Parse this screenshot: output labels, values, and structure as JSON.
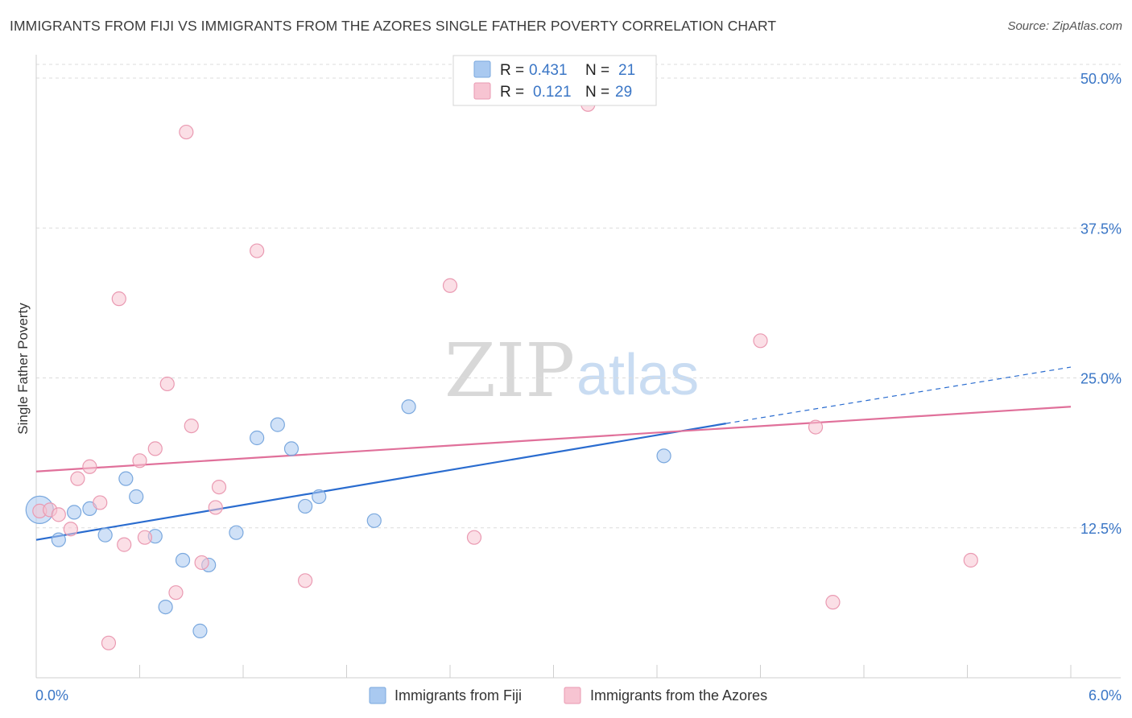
{
  "title": "IMMIGRANTS FROM FIJI VS IMMIGRANTS FROM THE AZORES SINGLE FATHER POVERTY CORRELATION CHART",
  "source": "Source: ZipAtlas.com",
  "watermark": {
    "zip": "ZIP",
    "atlas": "atlas"
  },
  "legend": {
    "r_label": "R =",
    "n_label": "N =",
    "rows": [
      {
        "r": "0.431",
        "n": "21"
      },
      {
        "r": "0.121",
        "n": "29"
      }
    ]
  },
  "chart_data": {
    "type": "scatter",
    "title": "IMMIGRANTS FROM FIJI VS IMMIGRANTS FROM THE AZORES SINGLE FATHER POVERTY CORRELATION CHART",
    "xlabel": "",
    "ylabel": "Single Father Poverty",
    "xlim": [
      0.0,
      6.0
    ],
    "ylim": [
      0.0,
      50.0
    ],
    "x_tick_labels": [
      "0.0%",
      "6.0%"
    ],
    "y_ticks": [
      12.5,
      25.0,
      37.5,
      50.0
    ],
    "y_tick_labels": [
      "12.5%",
      "25.0%",
      "37.5%",
      "50.0%"
    ],
    "grid": true,
    "legend_position": "top-center",
    "series": [
      {
        "name": "Immigrants from Fiji",
        "color": "#a9c9f0",
        "stroke": "#7aa8de",
        "line_color": "#2a6ccf",
        "r": 0.431,
        "n": 21,
        "trend": {
          "x0": 0.0,
          "y0": 11.5,
          "x1": 4.0,
          "y1": 21.2,
          "dashed_to_x": 6.0,
          "dashed_to_y": 25.9
        },
        "points": [
          {
            "x": 0.02,
            "y": 14.0,
            "big": true
          },
          {
            "x": 0.13,
            "y": 11.5
          },
          {
            "x": 0.22,
            "y": 13.8
          },
          {
            "x": 0.31,
            "y": 14.1
          },
          {
            "x": 0.4,
            "y": 11.9
          },
          {
            "x": 0.52,
            "y": 16.6
          },
          {
            "x": 0.58,
            "y": 15.1
          },
          {
            "x": 0.69,
            "y": 11.8
          },
          {
            "x": 0.75,
            "y": 5.9
          },
          {
            "x": 0.85,
            "y": 9.8
          },
          {
            "x": 0.95,
            "y": 3.9
          },
          {
            "x": 1.0,
            "y": 9.4
          },
          {
            "x": 1.16,
            "y": 12.1
          },
          {
            "x": 1.28,
            "y": 20.0
          },
          {
            "x": 1.4,
            "y": 21.1
          },
          {
            "x": 1.48,
            "y": 19.1
          },
          {
            "x": 1.56,
            "y": 14.3
          },
          {
            "x": 1.64,
            "y": 15.1
          },
          {
            "x": 1.96,
            "y": 13.1
          },
          {
            "x": 2.16,
            "y": 22.6
          },
          {
            "x": 3.64,
            "y": 18.5
          }
        ]
      },
      {
        "name": "Immigrants from the Azores",
        "color": "#f7c4d2",
        "stroke": "#ea9ab2",
        "line_color": "#e0709a",
        "r": 0.121,
        "n": 29,
        "trend": {
          "x0": 0.0,
          "y0": 17.2,
          "x1": 6.0,
          "y1": 22.6
        },
        "points": [
          {
            "x": 0.02,
            "y": 13.9
          },
          {
            "x": 0.08,
            "y": 14.0
          },
          {
            "x": 0.13,
            "y": 13.6
          },
          {
            "x": 0.2,
            "y": 12.4
          },
          {
            "x": 0.24,
            "y": 16.6
          },
          {
            "x": 0.31,
            "y": 17.6
          },
          {
            "x": 0.37,
            "y": 14.6
          },
          {
            "x": 0.42,
            "y": 2.9
          },
          {
            "x": 0.48,
            "y": 31.6
          },
          {
            "x": 0.51,
            "y": 11.1
          },
          {
            "x": 0.6,
            "y": 18.1
          },
          {
            "x": 0.63,
            "y": 11.7
          },
          {
            "x": 0.69,
            "y": 19.1
          },
          {
            "x": 0.76,
            "y": 24.5
          },
          {
            "x": 0.81,
            "y": 7.1
          },
          {
            "x": 0.87,
            "y": 45.5
          },
          {
            "x": 0.9,
            "y": 21.0
          },
          {
            "x": 0.96,
            "y": 9.6
          },
          {
            "x": 1.04,
            "y": 14.2
          },
          {
            "x": 1.06,
            "y": 15.9
          },
          {
            "x": 1.28,
            "y": 35.6
          },
          {
            "x": 1.56,
            "y": 8.1
          },
          {
            "x": 2.4,
            "y": 32.7
          },
          {
            "x": 2.54,
            "y": 11.7
          },
          {
            "x": 3.2,
            "y": 47.8
          },
          {
            "x": 4.2,
            "y": 28.1
          },
          {
            "x": 4.52,
            "y": 20.9
          },
          {
            "x": 4.62,
            "y": 6.3
          },
          {
            "x": 5.42,
            "y": 9.8
          }
        ]
      }
    ]
  }
}
